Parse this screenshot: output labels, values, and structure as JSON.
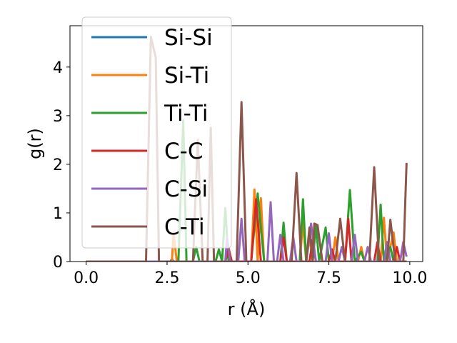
{
  "chart_data": {
    "type": "line",
    "xlabel": "r (Å)",
    "ylabel": "g(r)",
    "xlim": [
      -0.5,
      10.4
    ],
    "ylim": [
      0,
      4.85
    ],
    "x_ticks": [
      0.0,
      2.5,
      5.0,
      7.5,
      10.0
    ],
    "x_tick_labels": [
      "0.0",
      "2.5",
      "5.0",
      "7.5",
      "10.0"
    ],
    "y_ticks": [
      0,
      1,
      2,
      3,
      4
    ],
    "y_tick_labels": [
      "0",
      "1",
      "2",
      "3",
      "4"
    ],
    "grid": false,
    "legend_position": "upper-left",
    "series": [
      {
        "name": "Si-Si",
        "color": "#1f77b4",
        "points": [
          [
            0,
            0
          ],
          [
            2.6,
            0
          ],
          [
            2.65,
            0.05
          ],
          [
            2.7,
            0
          ],
          [
            9.9,
            0
          ]
        ]
      },
      {
        "name": "Si-Ti",
        "color": "#ff7f0e",
        "points": [
          [
            0,
            0
          ],
          [
            2.65,
            0
          ],
          [
            2.7,
            0.6
          ],
          [
            2.8,
            0
          ],
          [
            4.3,
            0
          ],
          [
            4.4,
            0.3
          ],
          [
            4.5,
            0
          ],
          [
            5.1,
            0
          ],
          [
            5.2,
            1.48
          ],
          [
            5.3,
            0
          ],
          [
            5.4,
            1.3
          ],
          [
            5.5,
            0
          ],
          [
            6.6,
            0
          ],
          [
            6.7,
            0.8
          ],
          [
            6.8,
            0
          ],
          [
            6.9,
            0.5
          ],
          [
            7.0,
            0
          ],
          [
            7.6,
            0
          ],
          [
            7.7,
            0.5
          ],
          [
            7.8,
            0
          ],
          [
            8.4,
            0
          ],
          [
            8.5,
            0.3
          ],
          [
            8.6,
            0
          ],
          [
            9.1,
            0
          ],
          [
            9.2,
            0.9
          ],
          [
            9.3,
            0
          ],
          [
            9.5,
            0.6
          ],
          [
            9.6,
            0
          ],
          [
            9.9,
            0
          ]
        ]
      },
      {
        "name": "Ti-Ti",
        "color": "#2ca02c",
        "points": [
          [
            0,
            0
          ],
          [
            2.85,
            0
          ],
          [
            3.0,
            2.9
          ],
          [
            3.1,
            0
          ],
          [
            3.3,
            0
          ],
          [
            3.4,
            0.3
          ],
          [
            3.5,
            0
          ],
          [
            4.0,
            0
          ],
          [
            4.1,
            0.25
          ],
          [
            4.2,
            0
          ],
          [
            4.3,
            1.1
          ],
          [
            4.4,
            0
          ],
          [
            5.1,
            0
          ],
          [
            5.3,
            1.4
          ],
          [
            5.5,
            0
          ],
          [
            6.0,
            0
          ],
          [
            6.1,
            0.8
          ],
          [
            6.2,
            0
          ],
          [
            6.6,
            0
          ],
          [
            6.7,
            1.28
          ],
          [
            6.8,
            0
          ],
          [
            7.0,
            0
          ],
          [
            7.1,
            0.75
          ],
          [
            7.2,
            0
          ],
          [
            7.4,
            0.7
          ],
          [
            7.5,
            0
          ],
          [
            8.0,
            0
          ],
          [
            8.15,
            1.47
          ],
          [
            8.3,
            0
          ],
          [
            8.5,
            0.2
          ],
          [
            8.6,
            0
          ],
          [
            9.0,
            0
          ],
          [
            9.1,
            1.17
          ],
          [
            9.2,
            0
          ],
          [
            9.4,
            0.3
          ],
          [
            9.5,
            0
          ],
          [
            9.9,
            0
          ]
        ]
      },
      {
        "name": "C-C",
        "color": "#d62728",
        "points": [
          [
            0,
            0
          ],
          [
            4.3,
            0
          ],
          [
            4.4,
            0.25
          ],
          [
            4.5,
            0
          ],
          [
            5.1,
            0
          ],
          [
            5.25,
            1.28
          ],
          [
            5.4,
            0
          ],
          [
            6.0,
            0
          ],
          [
            6.1,
            0.5
          ],
          [
            6.2,
            0
          ],
          [
            6.9,
            0
          ],
          [
            7.0,
            0.45
          ],
          [
            7.1,
            0
          ],
          [
            7.5,
            0
          ],
          [
            7.6,
            0.25
          ],
          [
            7.7,
            0
          ],
          [
            8.0,
            0
          ],
          [
            8.1,
            0.88
          ],
          [
            8.2,
            0
          ],
          [
            8.9,
            0
          ],
          [
            9.0,
            0.4
          ],
          [
            9.1,
            0
          ],
          [
            9.5,
            0
          ],
          [
            9.6,
            0.3
          ],
          [
            9.7,
            0
          ],
          [
            9.9,
            0
          ]
        ]
      },
      {
        "name": "C-Si",
        "color": "#9467bd",
        "points": [
          [
            0,
            0
          ],
          [
            4.3,
            0
          ],
          [
            4.35,
            0.5
          ],
          [
            4.45,
            0
          ],
          [
            4.7,
            0
          ],
          [
            4.8,
            0.88
          ],
          [
            4.9,
            0
          ],
          [
            5.6,
            0
          ],
          [
            5.7,
            1.22
          ],
          [
            5.8,
            0
          ],
          [
            5.9,
            0
          ],
          [
            6.0,
            0.55
          ],
          [
            6.1,
            0
          ],
          [
            6.3,
            0
          ],
          [
            6.4,
            0.5
          ],
          [
            6.5,
            0
          ],
          [
            6.8,
            0
          ],
          [
            6.95,
            0.78
          ],
          [
            7.1,
            0
          ],
          [
            7.4,
            0
          ],
          [
            7.5,
            0.58
          ],
          [
            7.6,
            0
          ],
          [
            7.8,
            0
          ],
          [
            7.9,
            0.3
          ],
          [
            8.0,
            0
          ],
          [
            8.2,
            0
          ],
          [
            8.3,
            0.55
          ],
          [
            8.4,
            0
          ],
          [
            8.6,
            0
          ],
          [
            8.7,
            0.3
          ],
          [
            8.8,
            0
          ],
          [
            9.2,
            0
          ],
          [
            9.3,
            0.4
          ],
          [
            9.4,
            0
          ],
          [
            9.7,
            0
          ],
          [
            9.8,
            0.4
          ],
          [
            9.9,
            0.1
          ]
        ]
      },
      {
        "name": "C-Ti",
        "color": "#8c564b",
        "points": [
          [
            0,
            0
          ],
          [
            1.85,
            0
          ],
          [
            2.0,
            4.62
          ],
          [
            2.15,
            4.2
          ],
          [
            2.25,
            0
          ],
          [
            3.3,
            0
          ],
          [
            3.45,
            2.5
          ],
          [
            3.6,
            0
          ],
          [
            3.75,
            0
          ],
          [
            3.85,
            2.75
          ],
          [
            3.95,
            0
          ],
          [
            4.65,
            0
          ],
          [
            4.8,
            3.28
          ],
          [
            4.95,
            0
          ],
          [
            6.35,
            0
          ],
          [
            6.5,
            1.82
          ],
          [
            6.65,
            0
          ],
          [
            6.8,
            0
          ],
          [
            6.9,
            0.7
          ],
          [
            7.0,
            0
          ],
          [
            7.05,
            0.78
          ],
          [
            7.15,
            0.75
          ],
          [
            7.3,
            0
          ],
          [
            7.7,
            0
          ],
          [
            7.85,
            0.88
          ],
          [
            8.0,
            0
          ],
          [
            8.75,
            0
          ],
          [
            8.9,
            1.94
          ],
          [
            9.05,
            0
          ],
          [
            9.3,
            0
          ],
          [
            9.4,
            0.86
          ],
          [
            9.55,
            0
          ],
          [
            9.8,
            0
          ],
          [
            9.9,
            2.03
          ]
        ]
      }
    ]
  }
}
